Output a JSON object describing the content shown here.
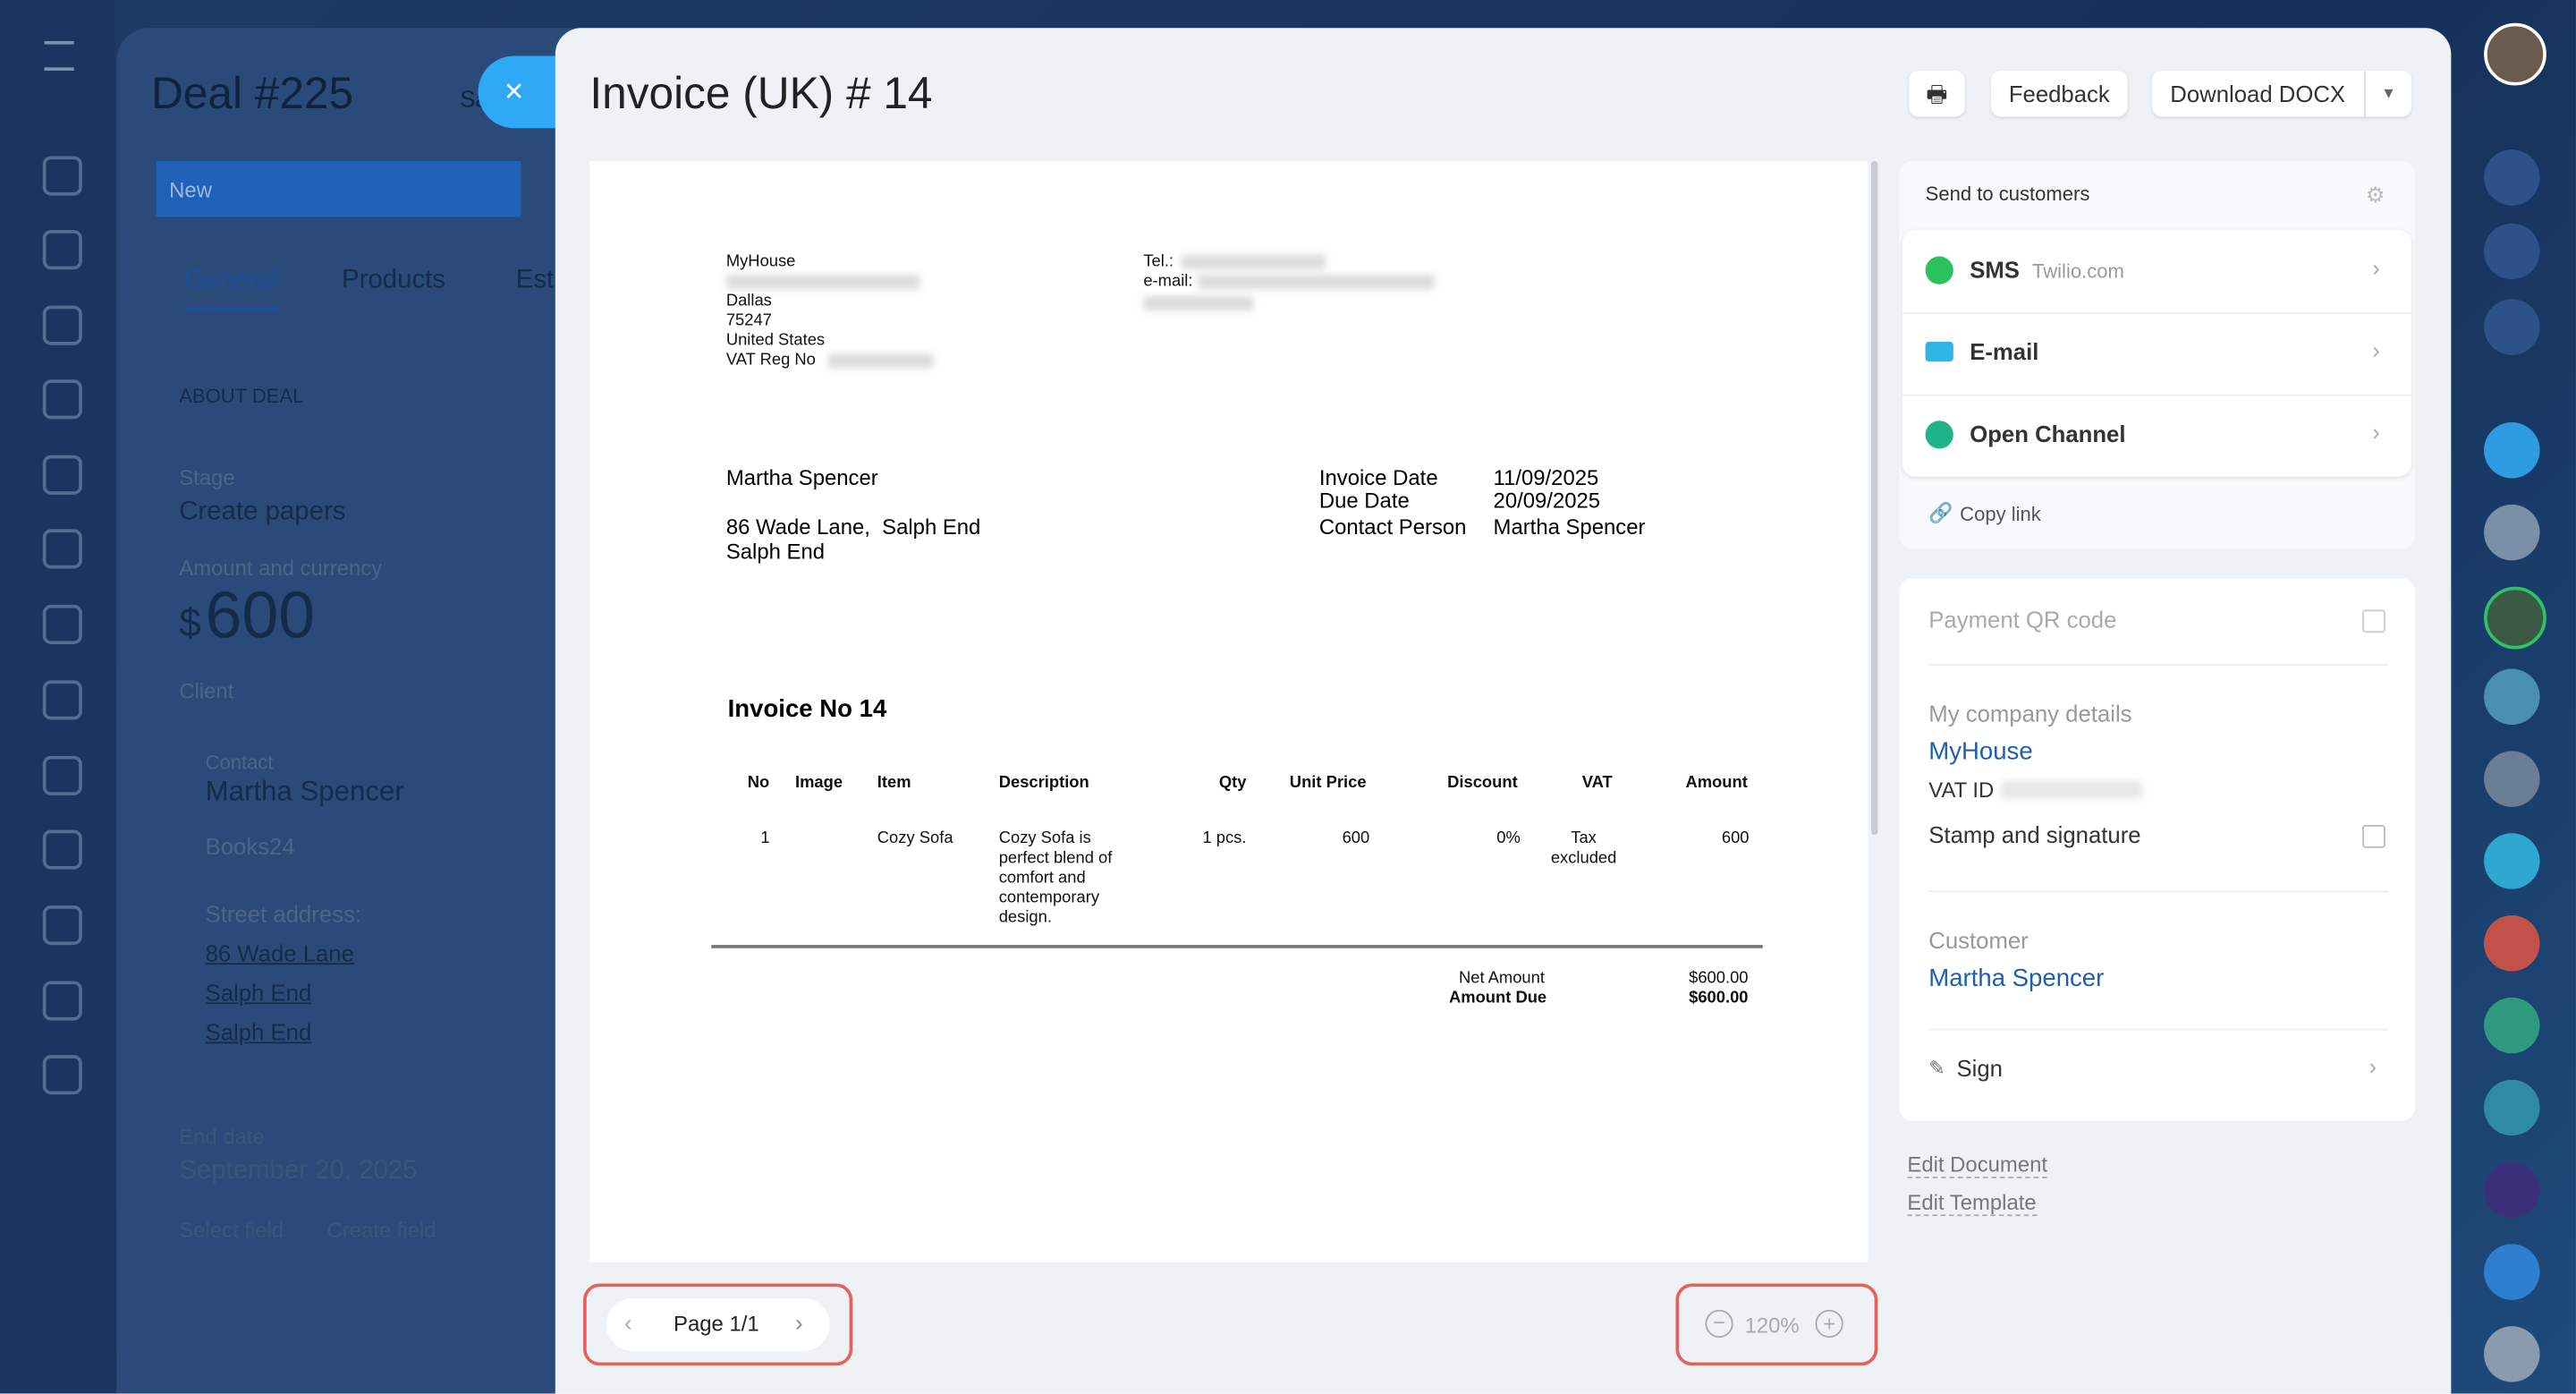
{
  "deal": {
    "title": "Deal #225",
    "title_cut": "Sa",
    "stage_tab": "New",
    "tabs": [
      "General",
      "Products",
      "Est"
    ],
    "section": "ABOUT DEAL",
    "stage_label": "Stage",
    "stage": "Create papers",
    "amount_label": "Amount and currency",
    "currency": "$",
    "amount": "600",
    "client_label": "Client",
    "contact_label": "Contact",
    "contact": "Martha Spencer",
    "company": "Books24",
    "street_label": "Street address:",
    "address": [
      "86 Wade Lane",
      "Salph End",
      "Salph End"
    ],
    "end_label": "End date",
    "end_date": "September 20, 2025",
    "links": [
      "Select field",
      "Create field"
    ]
  },
  "panel": {
    "title": "Invoice (UK) # 14",
    "feedback": "Feedback",
    "download": "Download DOCX"
  },
  "document": {
    "seller": [
      "MyHouse",
      "Dallas",
      "75247",
      "United States",
      "VAT Reg No"
    ],
    "contacts": [
      "Tel.:",
      "e-mail:"
    ],
    "buyer": [
      "Martha Spencer",
      "86 Wade Lane,  Salph End",
      "Salph End"
    ],
    "meta": [
      [
        "Invoice Date",
        "11/09/2025"
      ],
      [
        "Due Date",
        "20/09/2025"
      ],
      [
        "Contact Person",
        "Martha Spencer"
      ]
    ],
    "heading": "Invoice No 14",
    "columns": [
      "No",
      "Image",
      "Item",
      "Description",
      "Qty",
      "Unit Price",
      "Discount",
      "VAT",
      "Amount"
    ],
    "row": {
      "no": "1",
      "item": "Cozy Sofa",
      "description": "Cozy Sofa is perfect blend of comfort and contemporary design.",
      "qty": "1 pcs.",
      "price": "600",
      "discount": "0%",
      "vat": "Tax excluded",
      "amount": "600"
    },
    "totals": [
      [
        "Net Amount",
        "$600.00"
      ],
      [
        "Amount Due",
        "$600.00"
      ]
    ]
  },
  "footer": {
    "page": "Page 1/1",
    "zoom": "120%"
  },
  "sidebar": {
    "send_title": "Send to customers",
    "channels": [
      {
        "name": "SMS",
        "note": "Twilio.com"
      },
      {
        "name": "E-mail"
      },
      {
        "name": "Open Channel"
      }
    ],
    "copy_link": "Copy link",
    "qr": "Payment QR code",
    "company_label": "My company details",
    "company": "MyHouse",
    "vat": "VAT ID",
    "stamp": "Stamp and signature",
    "customer_label": "Customer",
    "customer": "Martha Spencer",
    "sign": "Sign",
    "edit_document": "Edit Document",
    "edit_template": "Edit Template"
  }
}
